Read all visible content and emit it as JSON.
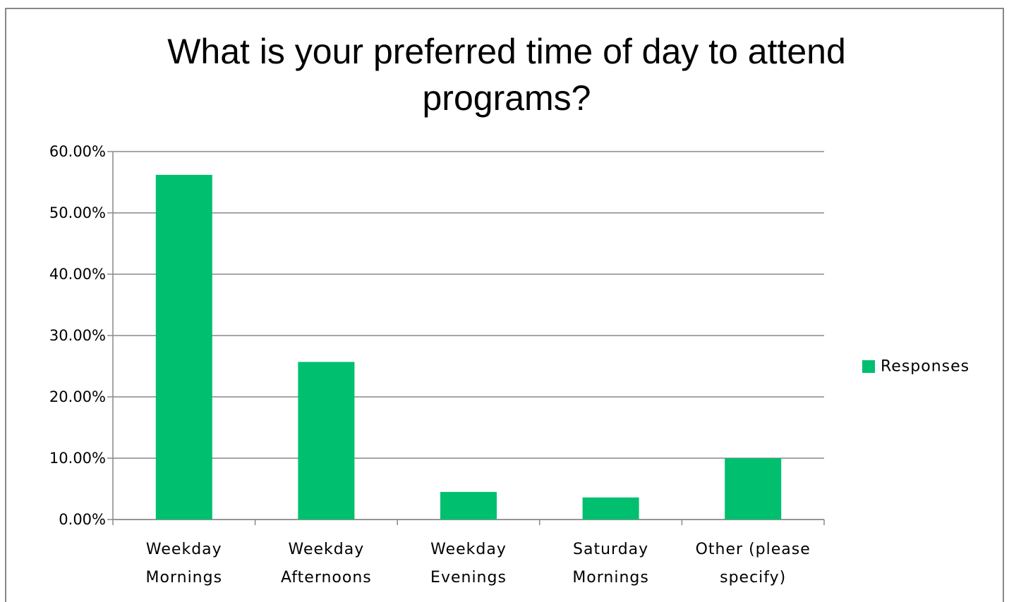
{
  "chart_data": {
    "type": "bar",
    "title": "What is your preferred time of day to attend programs?",
    "categories": [
      "Weekday Mornings",
      "Weekday Afternoons",
      "Weekday Evenings",
      "Saturday Mornings",
      "Other (please specify)"
    ],
    "series": [
      {
        "name": "Responses",
        "color": "#00bf6f",
        "values": [
          56.2,
          25.7,
          4.5,
          3.6,
          10.0
        ]
      }
    ],
    "ylim": [
      0,
      60
    ],
    "yticks": [
      {
        "value": 0,
        "label": "0.00%"
      },
      {
        "value": 10,
        "label": "10.00%"
      },
      {
        "value": 20,
        "label": "20.00%"
      },
      {
        "value": 30,
        "label": "30.00%"
      },
      {
        "value": 40,
        "label": "40.00%"
      },
      {
        "value": 50,
        "label": "50.00%"
      },
      {
        "value": 60,
        "label": "60.00%"
      }
    ],
    "grid": true,
    "legend": "right"
  }
}
